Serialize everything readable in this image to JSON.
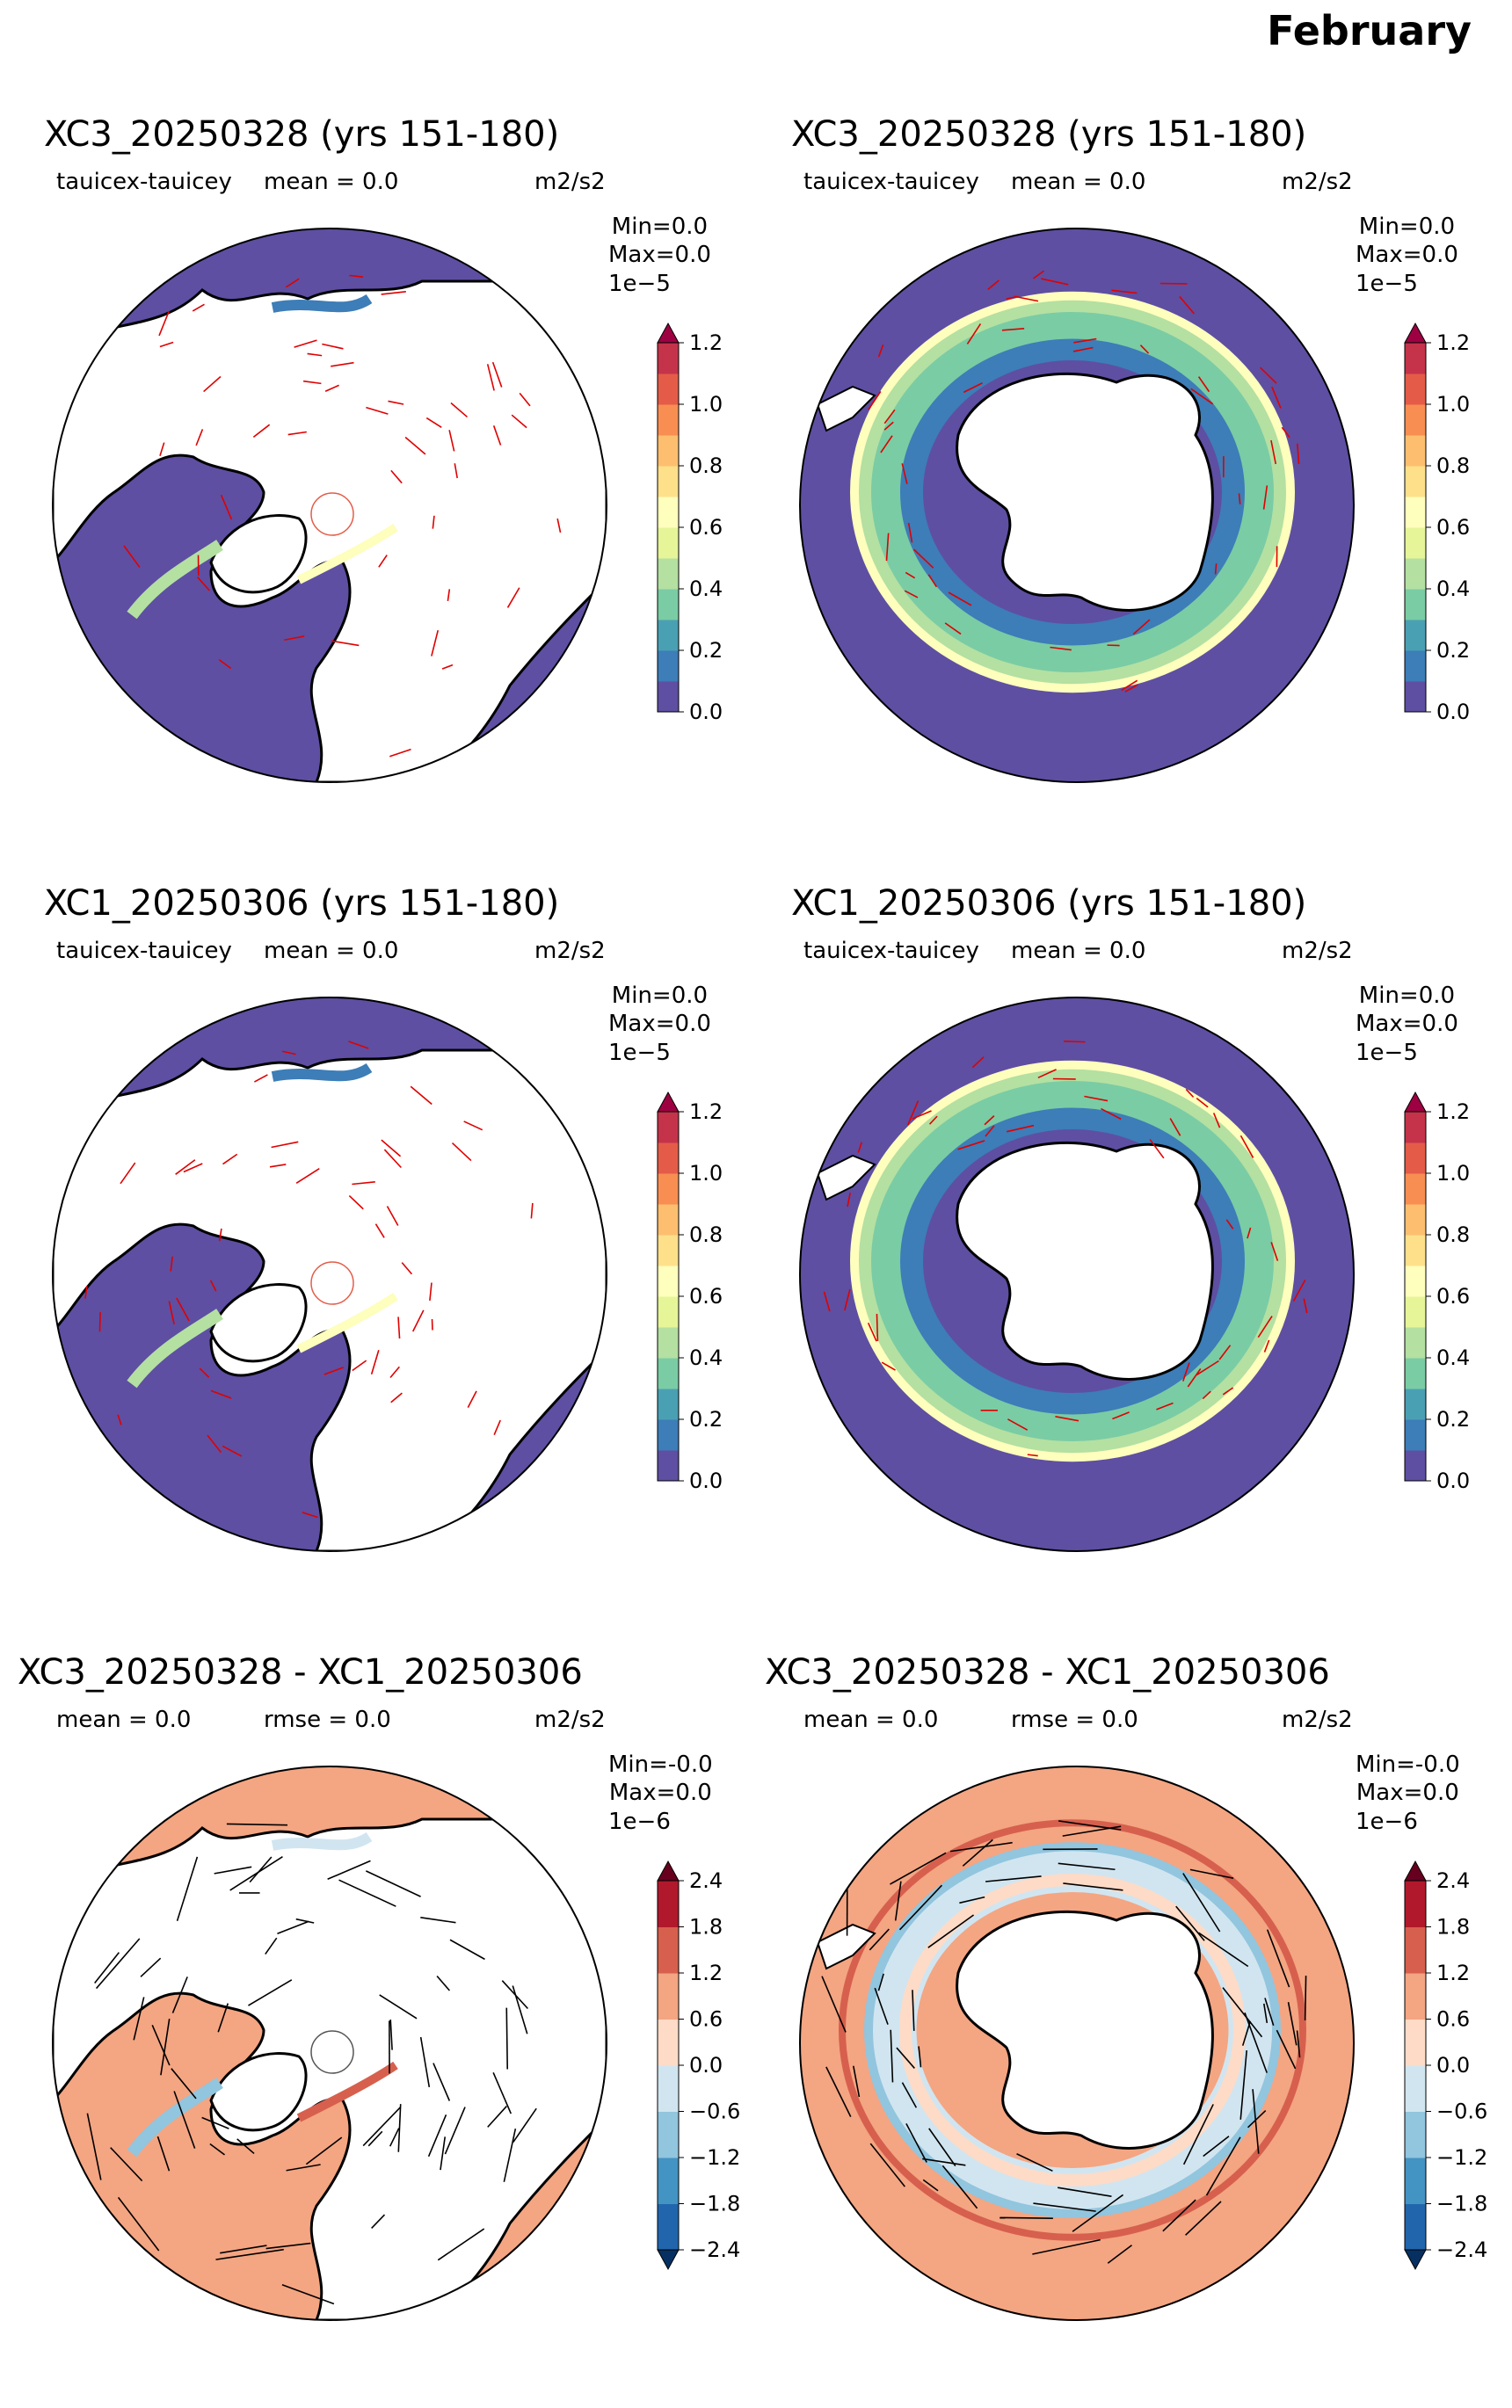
{
  "figure_title": "February",
  "chart_data": [
    {
      "type": "heatmap",
      "projection": "polar-north",
      "title": "XC3_20250328 (yrs 151-180)",
      "field_label": "tauicex-tauicey",
      "stat1": "mean = 0.0",
      "stat2": "",
      "units": "m2/s2",
      "min_text": "Min=0.0",
      "max_text": "Max=0.0",
      "exponent": "1e−5",
      "colormap": "Spectral_r",
      "vectors": "red",
      "colorbar_ticks": [
        "0.0",
        "0.2",
        "0.4",
        "0.6",
        "0.8",
        "1.0",
        "1.2"
      ]
    },
    {
      "type": "heatmap",
      "projection": "polar-south",
      "title": "XC3_20250328 (yrs 151-180)",
      "field_label": "tauicex-tauicey",
      "stat1": "mean = 0.0",
      "stat2": "",
      "units": "m2/s2",
      "min_text": "Min=0.0",
      "max_text": "Max=0.0",
      "exponent": "1e−5",
      "colormap": "Spectral_r",
      "vectors": "red",
      "colorbar_ticks": [
        "0.0",
        "0.2",
        "0.4",
        "0.6",
        "0.8",
        "1.0",
        "1.2"
      ]
    },
    {
      "type": "heatmap",
      "projection": "polar-north",
      "title": "XC1_20250306 (yrs 151-180)",
      "field_label": "tauicex-tauicey",
      "stat1": "mean = 0.0",
      "stat2": "",
      "units": "m2/s2",
      "min_text": "Min=0.0",
      "max_text": "Max=0.0",
      "exponent": "1e−5",
      "colormap": "Spectral_r",
      "vectors": "red",
      "colorbar_ticks": [
        "0.0",
        "0.2",
        "0.4",
        "0.6",
        "0.8",
        "1.0",
        "1.2"
      ]
    },
    {
      "type": "heatmap",
      "projection": "polar-south",
      "title": "XC1_20250306 (yrs 151-180)",
      "field_label": "tauicex-tauicey",
      "stat1": "mean = 0.0",
      "stat2": "",
      "units": "m2/s2",
      "min_text": "Min=0.0",
      "max_text": "Max=0.0",
      "exponent": "1e−5",
      "colormap": "Spectral_r",
      "vectors": "red",
      "colorbar_ticks": [
        "0.0",
        "0.2",
        "0.4",
        "0.6",
        "0.8",
        "1.0",
        "1.2"
      ]
    },
    {
      "type": "heatmap",
      "projection": "polar-north",
      "title": "XC3_20250328 - XC1_20250306",
      "field_label": "",
      "stat1": "mean = 0.0",
      "stat2": "rmse = 0.0",
      "units": "m2/s2",
      "min_text": "Min=-0.0",
      "max_text": "Max=0.0",
      "exponent": "1e−6",
      "colormap": "RdBu_r",
      "vectors": "black",
      "colorbar_ticks": [
        "−2.4",
        "−1.8",
        "−1.2",
        "−0.6",
        "0.0",
        "0.6",
        "1.2",
        "1.8",
        "2.4"
      ]
    },
    {
      "type": "heatmap",
      "projection": "polar-south",
      "title": "XC3_20250328 - XC1_20250306",
      "field_label": "",
      "stat1": "mean = 0.0",
      "stat2": "rmse = 0.0",
      "units": "m2/s2",
      "min_text": "Min=-0.0",
      "max_text": "Max=0.0",
      "exponent": "1e−6",
      "colormap": "RdBu_r",
      "vectors": "black",
      "colorbar_ticks": [
        "−2.4",
        "−1.8",
        "−1.2",
        "−0.6",
        "0.0",
        "0.6",
        "1.2",
        "1.8",
        "2.4"
      ]
    }
  ],
  "colors": {
    "ocean_base": "#5e4fa2",
    "land": "#ffffff",
    "diff_base": "#f4a582",
    "seq_colormap": [
      "#5e4fa2",
      "#3d7db8",
      "#4aa0b3",
      "#7acca4",
      "#b4e0a2",
      "#e6f598",
      "#fefebd",
      "#fee08b",
      "#fdbf6f",
      "#f88e52",
      "#e45c48",
      "#c4334a",
      "#9e0142"
    ],
    "div_colormap": [
      "#053061",
      "#2166ac",
      "#4393c3",
      "#92c5de",
      "#d1e5f0",
      "#fddbc7",
      "#f4a582",
      "#d6604d",
      "#b2182b",
      "#67001f"
    ]
  }
}
